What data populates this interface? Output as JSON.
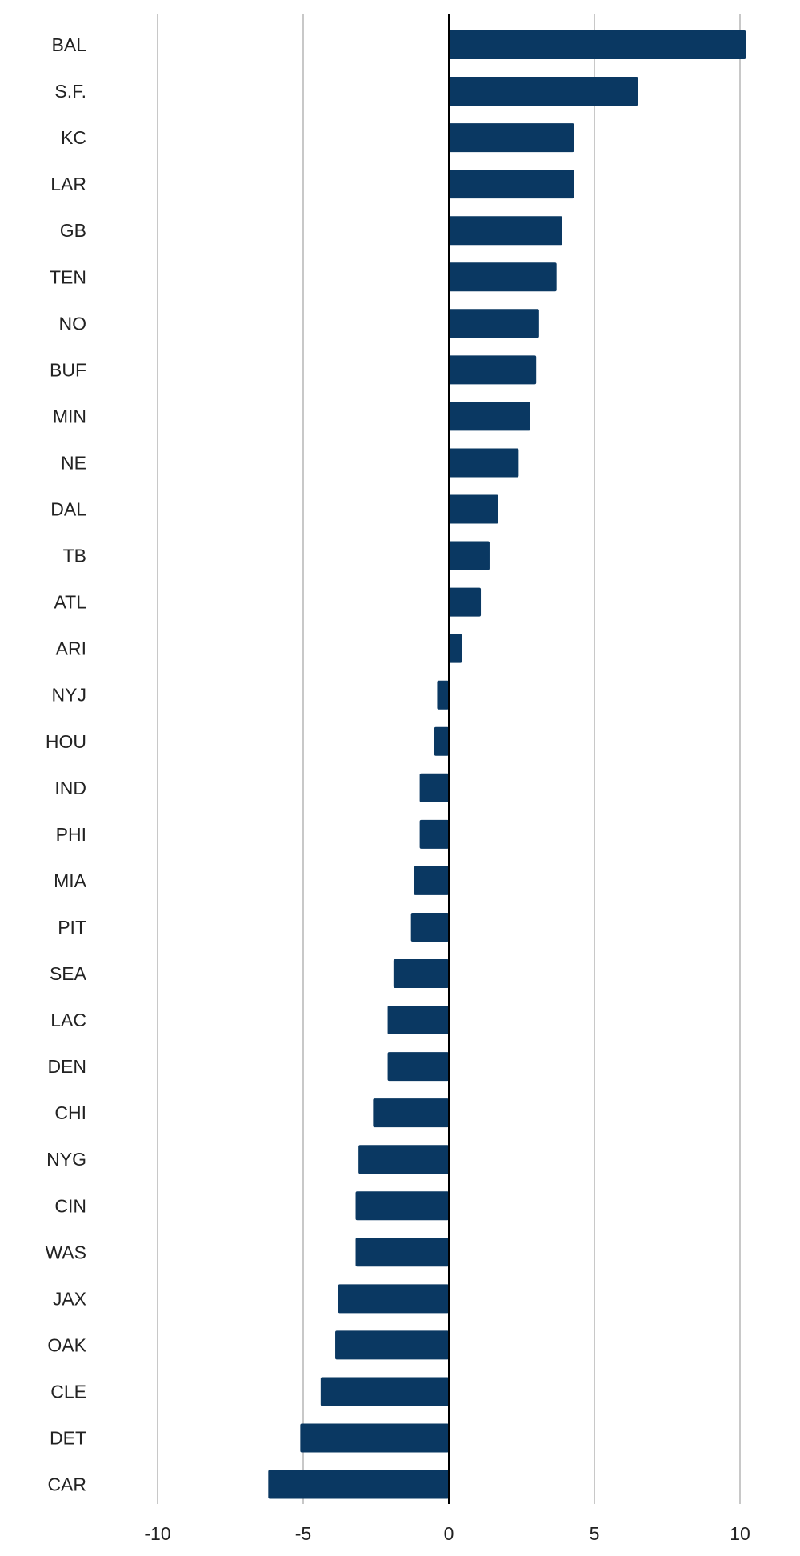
{
  "chart_data": {
    "type": "bar",
    "orientation": "horizontal",
    "categories": [
      "BAL",
      "S.F.",
      "KC",
      "LAR",
      "GB",
      "TEN",
      "NO",
      "BUF",
      "MIN",
      "NE",
      "DAL",
      "TB",
      "ATL",
      "ARI",
      "NYJ",
      "HOU",
      "IND",
      "PHI",
      "MIA",
      "PIT",
      "SEA",
      "LAC",
      "DEN",
      "CHI",
      "NYG",
      "CIN",
      "WAS",
      "JAX",
      "OAK",
      "CLE",
      "DET",
      "CAR"
    ],
    "values": [
      10.2,
      6.5,
      4.3,
      4.3,
      3.9,
      3.7,
      3.1,
      3.0,
      2.8,
      2.4,
      1.7,
      1.4,
      1.1,
      0.45,
      -0.4,
      -0.5,
      -1.0,
      -1.0,
      -1.2,
      -1.3,
      -1.9,
      -2.1,
      -2.1,
      -2.6,
      -3.1,
      -3.2,
      -3.2,
      -3.8,
      -3.9,
      -4.4,
      -5.1,
      -6.2
    ],
    "xlim": [
      -10,
      10
    ],
    "xticks": [
      "-10",
      "-5",
      "0",
      "5",
      "10"
    ],
    "xtick_values": [
      -10,
      -5,
      0,
      5,
      10
    ],
    "grid": true,
    "bar_color": "#0a3862",
    "grid_color": "#c8c8c8",
    "zero_line_color": "#000000",
    "title": "",
    "xlabel": "",
    "ylabel": ""
  }
}
